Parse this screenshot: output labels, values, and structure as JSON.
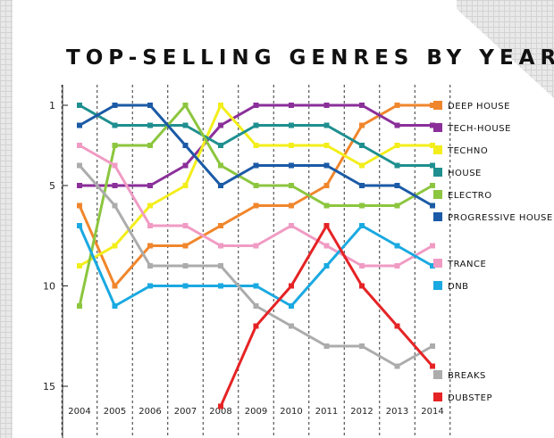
{
  "chart_data": {
    "type": "line",
    "title": "TOP-SELLING GENRES BY YEAR",
    "x": [
      "2004",
      "2005",
      "2006",
      "2007",
      "2008",
      "2009",
      "2010",
      "2011",
      "2012",
      "2013",
      "2014"
    ],
    "yticks": [
      "1",
      "5",
      "10",
      "15"
    ],
    "ylim": [
      1,
      15
    ],
    "y_inverted": true,
    "y_meaning": "rank",
    "legend_position": "right",
    "grid": "vertical dashed lines at each year",
    "series": [
      {
        "name": "DEEP HOUSE",
        "color": "#f0862c",
        "values": [
          6,
          10,
          8,
          8,
          7,
          6,
          6,
          5,
          2,
          1,
          1
        ]
      },
      {
        "name": "TECH-HOUSE",
        "color": "#8b2f9a",
        "values": [
          5,
          5,
          5,
          4,
          2,
          1,
          1,
          1,
          1,
          2,
          2
        ]
      },
      {
        "name": "TECHNO",
        "color": "#f3ee1b",
        "values": [
          9,
          8,
          6,
          5,
          1,
          3,
          3,
          3,
          4,
          3,
          3
        ]
      },
      {
        "name": "HOUSE",
        "color": "#1f8f8f",
        "values": [
          1,
          2,
          2,
          2,
          3,
          2,
          2,
          2,
          3,
          4,
          4
        ]
      },
      {
        "name": "ELECTRO",
        "color": "#8cc63f",
        "values": [
          11,
          3,
          3,
          1,
          4,
          5,
          5,
          6,
          6,
          6,
          5
        ]
      },
      {
        "name": "PROGRESSIVE HOUSE",
        "color": "#1b5aa6",
        "values": [
          2,
          1,
          1,
          3,
          5,
          4,
          4,
          4,
          5,
          5,
          6
        ]
      },
      {
        "name": "TRANCE",
        "color": "#f09bc4",
        "values": [
          3,
          4,
          7,
          7,
          8,
          8,
          7,
          8,
          9,
          9,
          8
        ]
      },
      {
        "name": "DNB",
        "color": "#1aa9e1",
        "values": [
          7,
          11,
          10,
          10,
          10,
          10,
          11,
          9,
          7,
          8,
          9
        ]
      },
      {
        "name": "BREAKS",
        "color": "#acacac",
        "values": [
          4,
          6,
          9,
          9,
          9,
          11,
          12,
          13,
          13,
          14,
          13
        ]
      },
      {
        "name": "DUBSTEP",
        "color": "#e52325",
        "values": [
          null,
          null,
          null,
          null,
          16,
          12,
          10,
          7,
          10,
          12,
          14
        ]
      }
    ]
  }
}
